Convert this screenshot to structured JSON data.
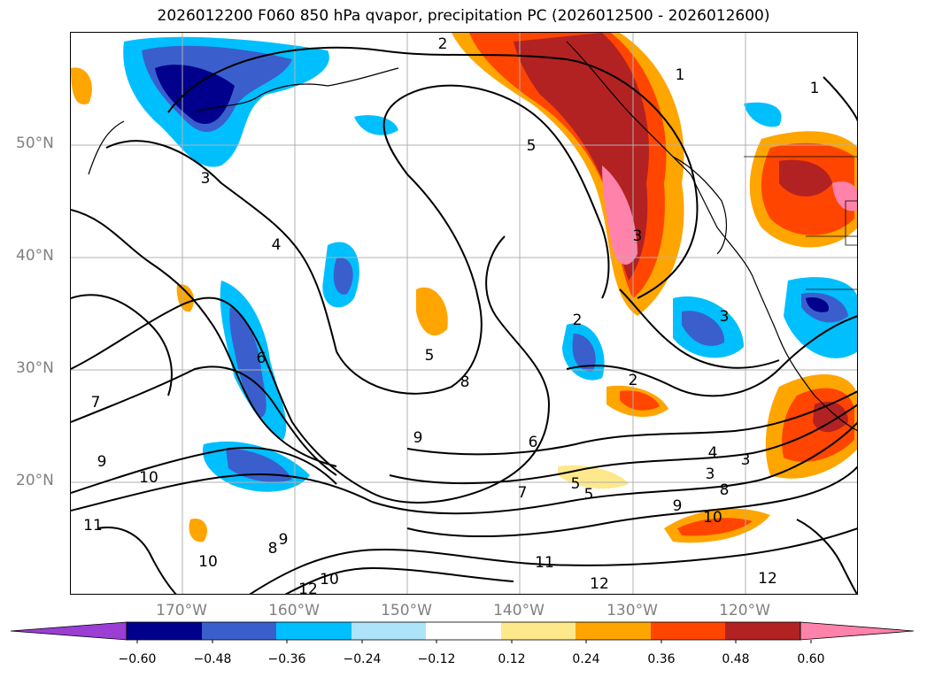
{
  "title": "2026012200 F060 850 hPa qvapor, precipitation PC (2026012500 - 2026012600)",
  "map": {
    "lat_labels": [
      "50°N",
      "40°N",
      "30°N",
      "20°N"
    ],
    "lon_labels": [
      "170°W",
      "160°W",
      "150°W",
      "140°W",
      "130°W",
      "120°W"
    ],
    "contour_labels": [
      "2",
      "1",
      "1",
      "3",
      "5",
      "4",
      "3",
      "2",
      "3",
      "6",
      "5",
      "7",
      "8",
      "9",
      "6",
      "4",
      "3",
      "3",
      "8",
      "9",
      "10",
      "2",
      "7",
      "11",
      "9",
      "10",
      "10",
      "8",
      "9",
      "11",
      "12",
      "12",
      "12",
      "10",
      "5",
      "5"
    ]
  },
  "colorbar": {
    "ticks": [
      "−0.60",
      "−0.48",
      "−0.36",
      "−0.24",
      "−0.12",
      "0.12",
      "0.24",
      "0.36",
      "0.48",
      "0.60"
    ],
    "colors": [
      "#9a3ed4",
      "#00008c",
      "#3a5fcd",
      "#00bfff",
      "#aee4fa",
      "#ffffff",
      "#fde98c",
      "#ffa500",
      "#ff4500",
      "#b22222",
      "#ff82ab"
    ]
  }
}
